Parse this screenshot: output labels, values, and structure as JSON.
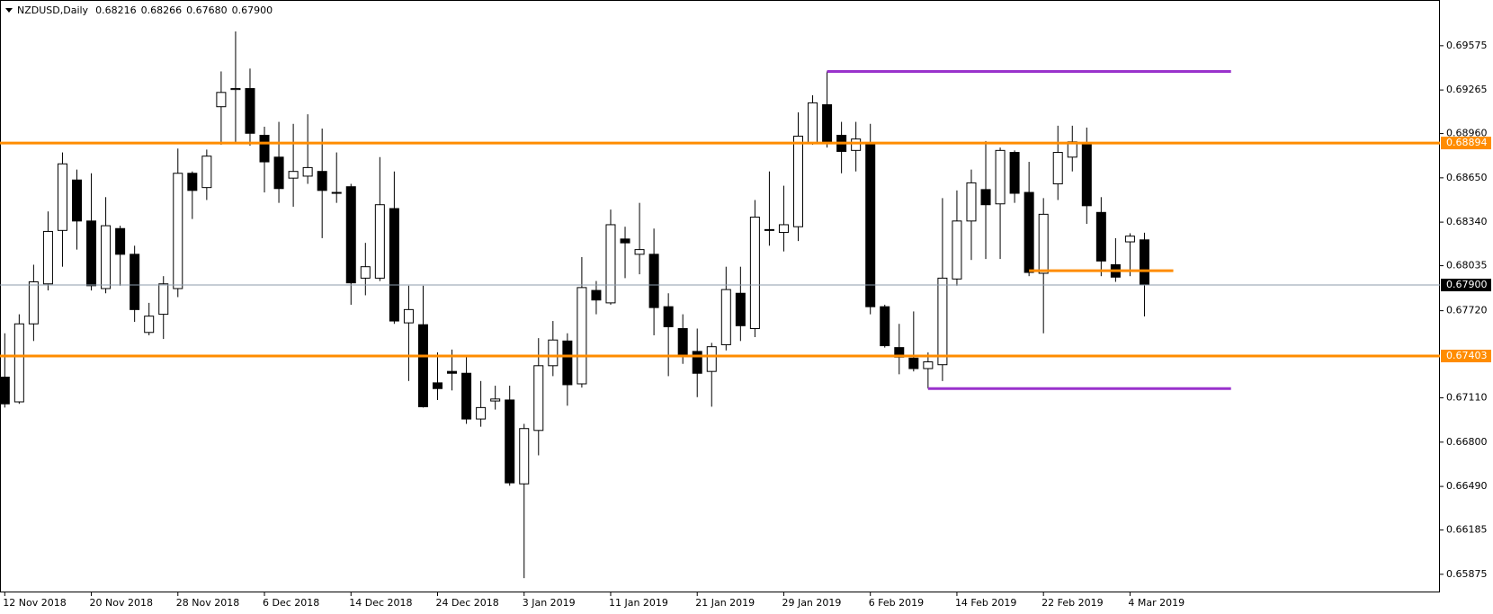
{
  "chart_data": {
    "type": "candlestick",
    "title": "NZDUSD,Daily",
    "quote_labels": [
      "0.68216",
      "0.68266",
      "0.67680",
      "0.67900"
    ],
    "categories": [
      "12 Nov 2018",
      null,
      null,
      null,
      null,
      null,
      "20 Nov 2018",
      null,
      null,
      null,
      null,
      null,
      "28 Nov 2018",
      null,
      null,
      null,
      null,
      null,
      "6 Dec 2018",
      null,
      null,
      null,
      null,
      null,
      "14 Dec 2018",
      null,
      null,
      null,
      null,
      null,
      "24 Dec 2018",
      null,
      null,
      null,
      null,
      null,
      "3 Jan 2019",
      null,
      null,
      null,
      null,
      null,
      "11 Jan 2019",
      null,
      null,
      null,
      null,
      null,
      "21 Jan 2019",
      null,
      null,
      null,
      null,
      null,
      "29 Jan 2019",
      null,
      null,
      null,
      null,
      null,
      "6 Feb 2019",
      null,
      null,
      null,
      null,
      null,
      "14 Feb 2019",
      null,
      null,
      null,
      null,
      null,
      "22 Feb 2019",
      null,
      null,
      null,
      null,
      null,
      "4 Mar 2019",
      null
    ],
    "open": [
      0.67255,
      0.67082,
      0.67628,
      0.67908,
      0.68282,
      0.68635,
      0.68348,
      0.67875,
      0.68295,
      0.68115,
      0.67568,
      0.67695,
      0.67875,
      0.68682,
      0.68582,
      0.69148,
      0.69268,
      0.69275,
      0.68948,
      0.68795,
      0.68648,
      0.68662,
      0.68695,
      0.68548,
      0.68588,
      0.67948,
      0.67948,
      0.68435,
      0.67635,
      0.67622,
      0.67215,
      0.67295,
      0.67282,
      0.66962,
      0.67088,
      0.67095,
      0.66508,
      0.66882,
      0.67335,
      0.67508,
      0.67208,
      0.67862,
      0.67775,
      0.68222,
      0.68115,
      0.68115,
      0.67748,
      0.67595,
      0.67435,
      0.67295,
      0.67482,
      0.67842,
      0.67595,
      0.68288,
      0.68268,
      0.68308,
      0.68895,
      0.69162,
      0.68948,
      0.68842,
      0.68895,
      0.67748,
      0.67462,
      0.67388,
      0.67315,
      0.67342,
      0.67942,
      0.68348,
      0.68568,
      0.68468,
      0.68828,
      0.68548,
      0.67982,
      0.68608,
      0.68795,
      0.68882,
      0.68408,
      0.68042,
      0.68202,
      0.68216
    ],
    "high": [
      0.67562,
      0.67695,
      0.68042,
      0.68415,
      0.68828,
      0.68708,
      0.68682,
      0.68515,
      0.68315,
      0.68175,
      0.67775,
      0.67962,
      0.68855,
      0.68695,
      0.68848,
      0.69395,
      0.69675,
      0.69415,
      0.69008,
      0.69042,
      0.69028,
      0.69095,
      0.68995,
      0.68828,
      0.68608,
      0.68195,
      0.68795,
      0.68695,
      0.67895,
      0.67895,
      0.67428,
      0.67448,
      0.67395,
      0.67228,
      0.67195,
      0.67195,
      0.66928,
      0.67528,
      0.67648,
      0.67562,
      0.68095,
      0.67928,
      0.68428,
      0.68308,
      0.68475,
      0.68295,
      0.67842,
      0.67695,
      0.67595,
      0.67495,
      0.68028,
      0.68028,
      0.68495,
      0.68695,
      0.68595,
      0.69108,
      0.69228,
      0.69395,
      0.69042,
      0.69042,
      0.69028,
      0.67762,
      0.67628,
      0.67715,
      0.67428,
      0.68508,
      0.68562,
      0.68708,
      0.68908,
      0.68862,
      0.68842,
      0.68762,
      0.68508,
      0.69015,
      0.69015,
      0.69002,
      0.68515,
      0.68228,
      0.68262,
      0.68266
    ],
    "low": [
      0.67042,
      0.67068,
      0.67508,
      0.67862,
      0.68028,
      0.68148,
      0.67862,
      0.67842,
      0.67895,
      0.67642,
      0.67548,
      0.67522,
      0.67815,
      0.68362,
      0.68495,
      0.68882,
      0.68895,
      0.68875,
      0.68548,
      0.68475,
      0.68448,
      0.68608,
      0.68228,
      0.68475,
      0.67762,
      0.67828,
      0.67928,
      0.67628,
      0.67228,
      0.67042,
      0.67095,
      0.67162,
      0.66928,
      0.66908,
      0.67028,
      0.66495,
      0.65848,
      0.66708,
      0.67262,
      0.67055,
      0.67182,
      0.67695,
      0.67762,
      0.67948,
      0.67975,
      0.67548,
      0.67262,
      0.67348,
      0.67115,
      0.67048,
      0.67442,
      0.67508,
      0.67535,
      0.68175,
      0.68135,
      0.68208,
      0.68882,
      0.68862,
      0.68682,
      0.68695,
      0.67695,
      0.67462,
      0.67275,
      0.67295,
      0.67175,
      0.67228,
      0.67895,
      0.68075,
      0.68082,
      0.68082,
      0.68475,
      0.67962,
      0.67562,
      0.68495,
      0.68695,
      0.68328,
      0.67962,
      0.67922,
      0.67962,
      0.6768
    ],
    "close": [
      0.67068,
      0.67628,
      0.67922,
      0.68275,
      0.68748,
      0.68348,
      0.67895,
      0.68315,
      0.68115,
      0.67728,
      0.67682,
      0.67908,
      0.68682,
      0.68562,
      0.68802,
      0.69248,
      0.69275,
      0.68962,
      0.68762,
      0.68575,
      0.68695,
      0.68722,
      0.68562,
      0.68542,
      0.67915,
      0.68028,
      0.68462,
      0.67648,
      0.67728,
      0.67048,
      0.67175,
      0.67282,
      0.66962,
      0.67042,
      0.67102,
      0.66515,
      0.66895,
      0.67335,
      0.67515,
      0.67202,
      0.67882,
      0.67795,
      0.68322,
      0.68195,
      0.68148,
      0.67742,
      0.67608,
      0.67415,
      0.67282,
      0.67468,
      0.67868,
      0.67615,
      0.68375,
      0.68282,
      0.68322,
      0.68942,
      0.69175,
      0.68895,
      0.68835,
      0.68922,
      0.67748,
      0.67475,
      0.67395,
      0.67315,
      0.67362,
      0.67948,
      0.68348,
      0.68615,
      0.68462,
      0.68842,
      0.68542,
      0.67988,
      0.68395,
      0.68828,
      0.68902,
      0.68455,
      0.68068,
      0.67955,
      0.68242,
      0.679
    ],
    "ylim": [
      0.65748,
      0.69895
    ],
    "yticks": [
      0.69575,
      0.69265,
      {
        "value": 0.6896,
        "label": "0.68960"
      },
      {
        "value": 0.6865,
        "label": "0.68650"
      },
      {
        "value": 0.6834,
        "label": "0.68340"
      },
      0.68035,
      {
        "value": 0.6772,
        "label": "0.67720"
      },
      {
        "value": 0.6711,
        "label": "0.67110"
      },
      {
        "value": 0.668,
        "label": "0.66800"
      },
      {
        "value": 0.6649,
        "label": "0.66490"
      },
      0.66185,
      0.65875
    ],
    "hlines": [
      {
        "value": 0.68894,
        "label": "0.68894",
        "color": "#ff8c00"
      },
      {
        "value": 0.67403,
        "label": "0.67403",
        "color": "#ff8c00"
      },
      {
        "value": 0.679,
        "label": "0.67900",
        "color": "#8c9bab"
      }
    ],
    "segments": [
      {
        "value": 0.68,
        "start": 71,
        "end": 81,
        "color": "#ff8c00"
      },
      {
        "value": 0.69395,
        "start": 57,
        "end": 85,
        "color": "#9932cc"
      },
      {
        "value": 0.67175,
        "start": 64,
        "end": 85,
        "color": "#9932cc"
      }
    ]
  }
}
